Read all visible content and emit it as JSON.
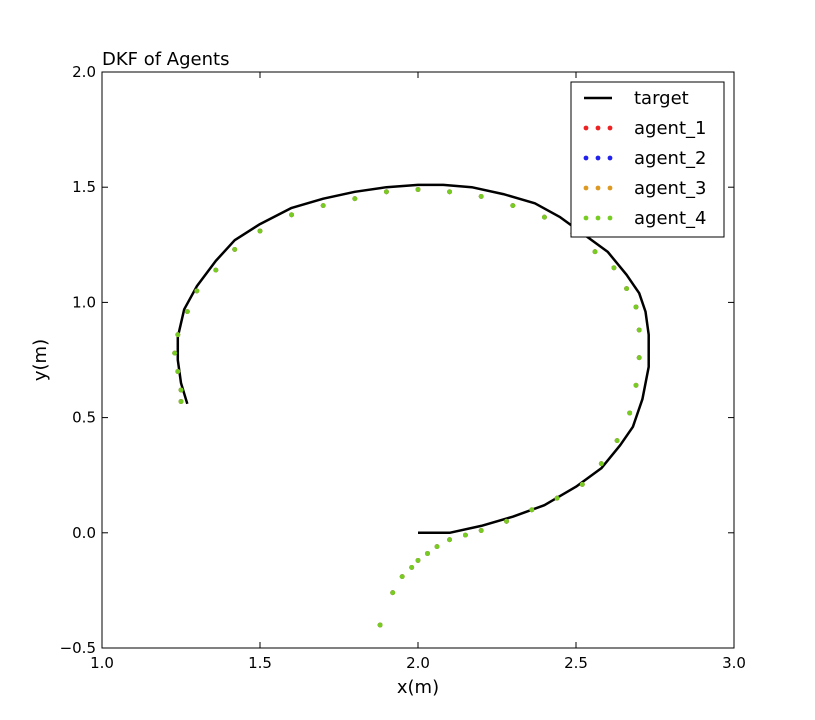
{
  "chart_data": {
    "type": "line",
    "title": "DKF of Agents",
    "xlabel": "x(m)",
    "ylabel": "y(m)",
    "xlim": [
      1.0,
      3.0
    ],
    "ylim": [
      -0.5,
      2.0
    ],
    "xticks": [
      1.0,
      1.5,
      2.0,
      2.5,
      3.0
    ],
    "yticks": [
      -0.5,
      0.0,
      0.5,
      1.0,
      1.5,
      2.0
    ],
    "xtick_labels": [
      "1.0",
      "1.5",
      "2.0",
      "2.5",
      "3.0"
    ],
    "ytick_labels": [
      "−0.5",
      "0.0",
      "0.5",
      "1.0",
      "1.5",
      "2.0"
    ],
    "grid": false,
    "legend_position": "top-right",
    "series": [
      {
        "name": "target",
        "style": "line",
        "color": "#000000",
        "points": [
          [
            2.0,
            0.0
          ],
          [
            2.1,
            0.0
          ],
          [
            2.2,
            0.03
          ],
          [
            2.3,
            0.07
          ],
          [
            2.4,
            0.12
          ],
          [
            2.5,
            0.2
          ],
          [
            2.58,
            0.28
          ],
          [
            2.64,
            0.38
          ],
          [
            2.68,
            0.46
          ],
          [
            2.71,
            0.58
          ],
          [
            2.73,
            0.72
          ],
          [
            2.73,
            0.86
          ],
          [
            2.72,
            0.96
          ],
          [
            2.7,
            1.04
          ],
          [
            2.66,
            1.12
          ],
          [
            2.6,
            1.22
          ],
          [
            2.53,
            1.29
          ],
          [
            2.45,
            1.37
          ],
          [
            2.37,
            1.43
          ],
          [
            2.27,
            1.47
          ],
          [
            2.17,
            1.5
          ],
          [
            2.08,
            1.51
          ],
          [
            2.0,
            1.51
          ],
          [
            1.9,
            1.5
          ],
          [
            1.8,
            1.48
          ],
          [
            1.7,
            1.45
          ],
          [
            1.6,
            1.41
          ],
          [
            1.5,
            1.34
          ],
          [
            1.42,
            1.27
          ],
          [
            1.36,
            1.18
          ],
          [
            1.3,
            1.07
          ],
          [
            1.26,
            0.97
          ],
          [
            1.24,
            0.85
          ],
          [
            1.24,
            0.75
          ],
          [
            1.25,
            0.65
          ],
          [
            1.27,
            0.56
          ]
        ]
      },
      {
        "name": "agent_1",
        "style": "dots",
        "color": "#ee2222",
        "points": [
          [
            1.88,
            -0.4
          ],
          [
            1.92,
            -0.26
          ],
          [
            1.95,
            -0.19
          ],
          [
            1.98,
            -0.15
          ],
          [
            2.0,
            -0.12
          ],
          [
            2.03,
            -0.09
          ],
          [
            2.06,
            -0.06
          ],
          [
            2.1,
            -0.03
          ],
          [
            2.15,
            -0.01
          ],
          [
            2.2,
            0.01
          ],
          [
            2.28,
            0.05
          ],
          [
            2.36,
            0.1
          ],
          [
            2.44,
            0.15
          ],
          [
            2.52,
            0.21
          ],
          [
            2.58,
            0.3
          ],
          [
            2.63,
            0.4
          ],
          [
            2.67,
            0.52
          ],
          [
            2.69,
            0.64
          ],
          [
            2.7,
            0.76
          ],
          [
            2.7,
            0.88
          ],
          [
            2.69,
            0.98
          ],
          [
            2.66,
            1.06
          ],
          [
            2.62,
            1.15
          ],
          [
            2.56,
            1.22
          ],
          [
            2.49,
            1.3
          ],
          [
            2.4,
            1.37
          ],
          [
            2.3,
            1.42
          ],
          [
            2.2,
            1.46
          ],
          [
            2.1,
            1.48
          ],
          [
            2.0,
            1.49
          ],
          [
            1.9,
            1.48
          ],
          [
            1.8,
            1.45
          ],
          [
            1.7,
            1.42
          ],
          [
            1.6,
            1.38
          ],
          [
            1.5,
            1.31
          ],
          [
            1.42,
            1.23
          ],
          [
            1.36,
            1.14
          ],
          [
            1.3,
            1.05
          ],
          [
            1.27,
            0.96
          ],
          [
            1.24,
            0.86
          ],
          [
            1.23,
            0.78
          ],
          [
            1.24,
            0.7
          ],
          [
            1.25,
            0.62
          ],
          [
            1.25,
            0.57
          ]
        ]
      },
      {
        "name": "agent_2",
        "style": "dots",
        "color": "#2222ee",
        "points": [
          [
            1.88,
            -0.4
          ],
          [
            1.92,
            -0.26
          ],
          [
            1.95,
            -0.19
          ],
          [
            1.98,
            -0.15
          ],
          [
            2.0,
            -0.12
          ],
          [
            2.03,
            -0.09
          ],
          [
            2.06,
            -0.06
          ],
          [
            2.1,
            -0.03
          ],
          [
            2.15,
            -0.01
          ],
          [
            2.2,
            0.01
          ],
          [
            2.28,
            0.05
          ],
          [
            2.36,
            0.1
          ],
          [
            2.44,
            0.15
          ],
          [
            2.52,
            0.21
          ],
          [
            2.58,
            0.3
          ],
          [
            2.63,
            0.4
          ],
          [
            2.67,
            0.52
          ],
          [
            2.69,
            0.64
          ],
          [
            2.7,
            0.76
          ],
          [
            2.7,
            0.88
          ],
          [
            2.69,
            0.98
          ],
          [
            2.66,
            1.06
          ],
          [
            2.62,
            1.15
          ],
          [
            2.56,
            1.22
          ],
          [
            2.49,
            1.3
          ],
          [
            2.4,
            1.37
          ],
          [
            2.3,
            1.42
          ],
          [
            2.2,
            1.46
          ],
          [
            2.1,
            1.48
          ],
          [
            2.0,
            1.49
          ],
          [
            1.9,
            1.48
          ],
          [
            1.8,
            1.45
          ],
          [
            1.7,
            1.42
          ],
          [
            1.6,
            1.38
          ],
          [
            1.5,
            1.31
          ],
          [
            1.42,
            1.23
          ],
          [
            1.36,
            1.14
          ],
          [
            1.3,
            1.05
          ],
          [
            1.27,
            0.96
          ],
          [
            1.24,
            0.86
          ],
          [
            1.23,
            0.78
          ],
          [
            1.24,
            0.7
          ],
          [
            1.25,
            0.62
          ],
          [
            1.25,
            0.57
          ]
        ]
      },
      {
        "name": "agent_3",
        "style": "dots",
        "color": "#dd9922",
        "points": [
          [
            1.88,
            -0.4
          ],
          [
            1.92,
            -0.26
          ],
          [
            1.95,
            -0.19
          ],
          [
            1.98,
            -0.15
          ],
          [
            2.0,
            -0.12
          ],
          [
            2.03,
            -0.09
          ],
          [
            2.06,
            -0.06
          ],
          [
            2.1,
            -0.03
          ],
          [
            2.15,
            -0.01
          ],
          [
            2.2,
            0.01
          ],
          [
            2.28,
            0.05
          ],
          [
            2.36,
            0.1
          ],
          [
            2.44,
            0.15
          ],
          [
            2.52,
            0.21
          ],
          [
            2.58,
            0.3
          ],
          [
            2.63,
            0.4
          ],
          [
            2.67,
            0.52
          ],
          [
            2.69,
            0.64
          ],
          [
            2.7,
            0.76
          ],
          [
            2.7,
            0.88
          ],
          [
            2.69,
            0.98
          ],
          [
            2.66,
            1.06
          ],
          [
            2.62,
            1.15
          ],
          [
            2.56,
            1.22
          ],
          [
            2.49,
            1.3
          ],
          [
            2.4,
            1.37
          ],
          [
            2.3,
            1.42
          ],
          [
            2.2,
            1.46
          ],
          [
            2.1,
            1.48
          ],
          [
            2.0,
            1.49
          ],
          [
            1.9,
            1.48
          ],
          [
            1.8,
            1.45
          ],
          [
            1.7,
            1.42
          ],
          [
            1.6,
            1.38
          ],
          [
            1.5,
            1.31
          ],
          [
            1.42,
            1.23
          ],
          [
            1.36,
            1.14
          ],
          [
            1.3,
            1.05
          ],
          [
            1.27,
            0.96
          ],
          [
            1.24,
            0.86
          ],
          [
            1.23,
            0.78
          ],
          [
            1.24,
            0.7
          ],
          [
            1.25,
            0.62
          ],
          [
            1.25,
            0.57
          ]
        ]
      },
      {
        "name": "agent_4",
        "style": "dots",
        "color": "#77cc22",
        "points": [
          [
            1.88,
            -0.4
          ],
          [
            1.92,
            -0.26
          ],
          [
            1.95,
            -0.19
          ],
          [
            1.98,
            -0.15
          ],
          [
            2.0,
            -0.12
          ],
          [
            2.03,
            -0.09
          ],
          [
            2.06,
            -0.06
          ],
          [
            2.1,
            -0.03
          ],
          [
            2.15,
            -0.01
          ],
          [
            2.2,
            0.01
          ],
          [
            2.28,
            0.05
          ],
          [
            2.36,
            0.1
          ],
          [
            2.44,
            0.15
          ],
          [
            2.52,
            0.21
          ],
          [
            2.58,
            0.3
          ],
          [
            2.63,
            0.4
          ],
          [
            2.67,
            0.52
          ],
          [
            2.69,
            0.64
          ],
          [
            2.7,
            0.76
          ],
          [
            2.7,
            0.88
          ],
          [
            2.69,
            0.98
          ],
          [
            2.66,
            1.06
          ],
          [
            2.62,
            1.15
          ],
          [
            2.56,
            1.22
          ],
          [
            2.49,
            1.3
          ],
          [
            2.4,
            1.37
          ],
          [
            2.3,
            1.42
          ],
          [
            2.2,
            1.46
          ],
          [
            2.1,
            1.48
          ],
          [
            2.0,
            1.49
          ],
          [
            1.9,
            1.48
          ],
          [
            1.8,
            1.45
          ],
          [
            1.7,
            1.42
          ],
          [
            1.6,
            1.38
          ],
          [
            1.5,
            1.31
          ],
          [
            1.42,
            1.23
          ],
          [
            1.36,
            1.14
          ],
          [
            1.3,
            1.05
          ],
          [
            1.27,
            0.96
          ],
          [
            1.24,
            0.86
          ],
          [
            1.23,
            0.78
          ],
          [
            1.24,
            0.7
          ],
          [
            1.25,
            0.62
          ],
          [
            1.25,
            0.57
          ]
        ]
      }
    ]
  }
}
